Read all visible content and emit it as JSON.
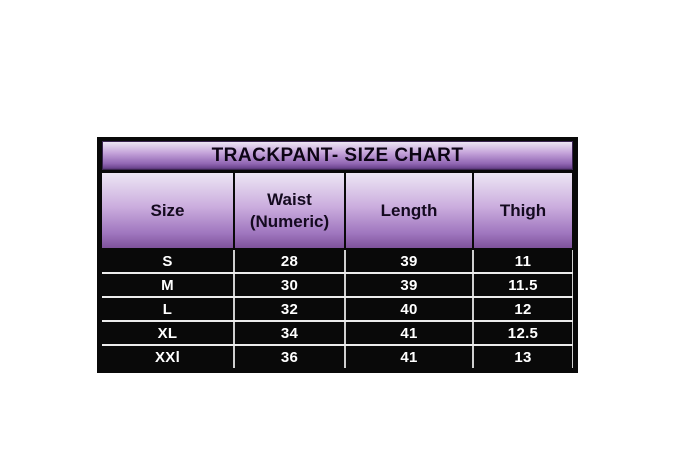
{
  "chart_data": {
    "type": "table",
    "title": "TRACKPANT- SIZE CHART",
    "columns": [
      "Size",
      "Waist\n(Numeric)",
      "Length",
      "Thigh"
    ],
    "rows": [
      [
        "S",
        "28",
        "39",
        "11"
      ],
      [
        "M",
        "30",
        "39",
        "11.5"
      ],
      [
        "L",
        "32",
        "40",
        "12"
      ],
      [
        "XL",
        "34",
        "41",
        "12.5"
      ],
      [
        "XXl",
        "36",
        "41",
        "13"
      ]
    ],
    "layout_hints": {
      "header_fill": "purple vertical gradient light-to-dark",
      "data_row_fill": "black with white text",
      "grid": "on"
    },
    "colors": {
      "page_background": "#ffffff",
      "table_background": "#090909",
      "header_gradient_top": "#ede6f4",
      "header_gradient_bottom": "#7e529b",
      "header_text": "#140a1f",
      "data_text": "#ffffff",
      "row_separator": "#ececec",
      "column_separator": "#cfcfcf"
    }
  }
}
